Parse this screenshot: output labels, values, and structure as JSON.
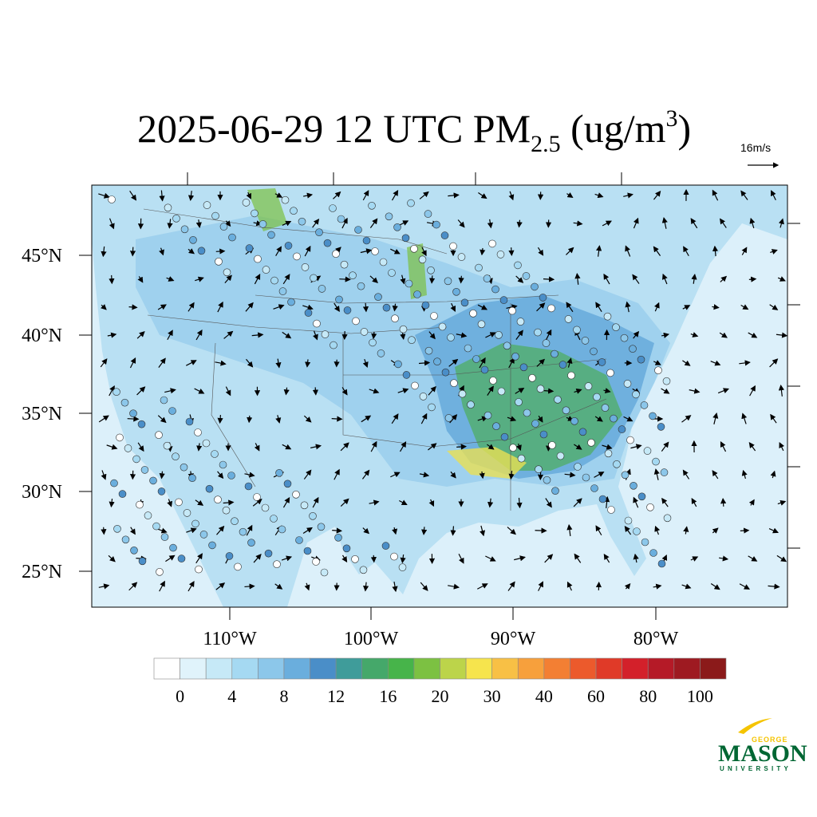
{
  "title": {
    "main": "2025-06-29 12 UTC PM",
    "subscript": "2.5",
    "unit": " (ug/m",
    "superscript": "3",
    "close": ")"
  },
  "wind_reference": "16m/s",
  "latitude_labels": [
    "45°N",
    "40°N",
    "35°N",
    "30°N",
    "25°N"
  ],
  "longitude_labels": [
    "110°W",
    "100°W",
    "90°W",
    "80°W"
  ],
  "colorbar": {
    "labels": [
      0,
      4,
      8,
      12,
      16,
      20,
      30,
      40,
      60,
      80,
      100
    ],
    "colors": [
      "#ffffff",
      "#e0f3fb",
      "#c6e9f7",
      "#a5d9f2",
      "#8cc7ea",
      "#6aaedd",
      "#4a8ec8",
      "#3f9c9a",
      "#45a86a",
      "#47b44a",
      "#7cc142",
      "#bcd44a",
      "#f6e44d",
      "#f8c045",
      "#f7a03c",
      "#f37f33",
      "#ec5a2c",
      "#e03a28",
      "#d3202a",
      "#b51a27",
      "#9e1a21",
      "#8b1a1a"
    ]
  },
  "logo": {
    "top": "GEORGE",
    "name": "MASON",
    "bottom": "UNIVERSITY"
  }
}
